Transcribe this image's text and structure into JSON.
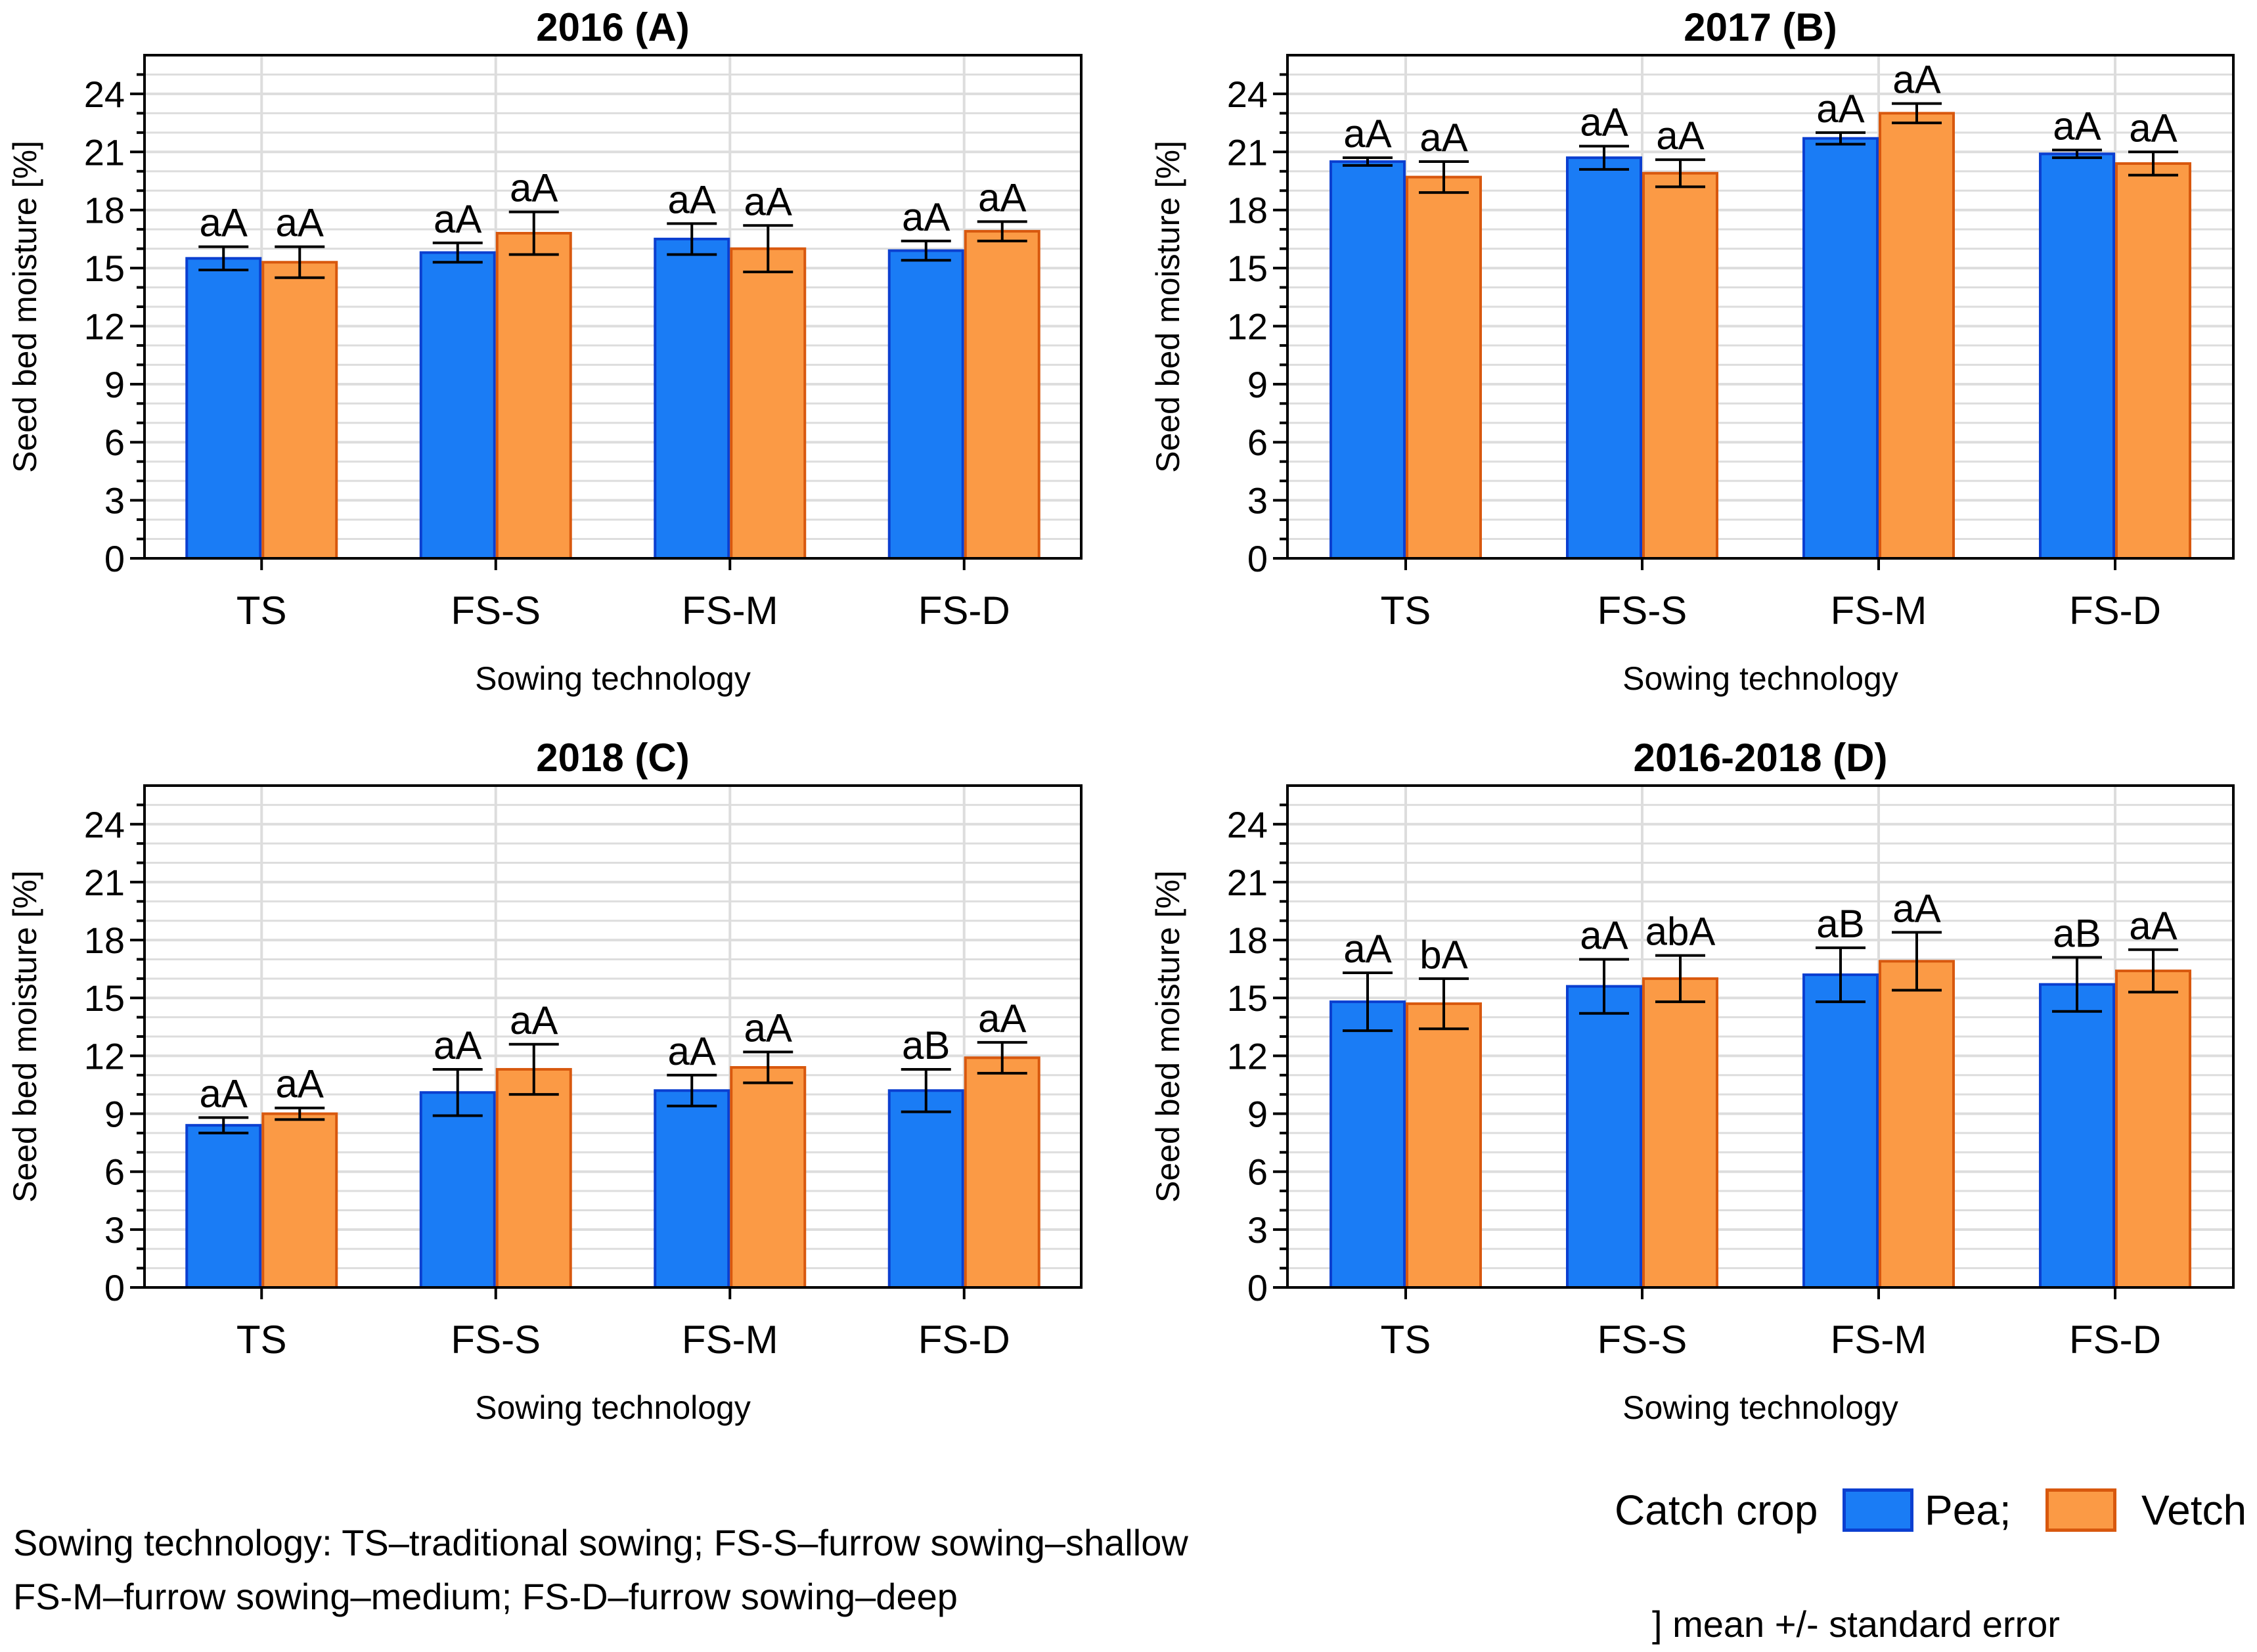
{
  "colors": {
    "pea_fill": "#1a7cf5",
    "pea_stroke": "#0b3fd0",
    "vetch_fill": "#fb9a45",
    "vetch_stroke": "#d8580e",
    "grid": "#dddddd",
    "frame": "#000000"
  },
  "chart_data": [
    {
      "type": "bar",
      "title": "2016 (A)",
      "xlabel": "Sowing technology",
      "ylabel": "Seed bed moisture [%]",
      "ylim": [
        0,
        26
      ],
      "yticks": [
        "0",
        "3",
        "6",
        "9",
        "12",
        "15",
        "18",
        "21",
        "24"
      ],
      "categories": [
        "TS",
        "FS-S",
        "FS-M",
        "FS-D"
      ],
      "series": [
        {
          "name": "Pea",
          "values": [
            15.5,
            15.8,
            16.5,
            15.9
          ],
          "errors": [
            0.6,
            0.5,
            0.8,
            0.5
          ],
          "labels": [
            "aA",
            "aA",
            "aA",
            "aA"
          ]
        },
        {
          "name": "Vetch",
          "values": [
            15.3,
            16.8,
            16.0,
            16.9
          ],
          "errors": [
            0.8,
            1.1,
            1.2,
            0.5
          ],
          "labels": [
            "aA",
            "aA",
            "aA",
            "aA"
          ]
        }
      ]
    },
    {
      "type": "bar",
      "title": "2017 (B)",
      "xlabel": "Sowing technology",
      "ylabel": "Seed bed moisture [%]",
      "ylim": [
        0,
        26
      ],
      "yticks": [
        "0",
        "3",
        "6",
        "9",
        "12",
        "15",
        "18",
        "21",
        "24"
      ],
      "categories": [
        "TS",
        "FS-S",
        "FS-M",
        "FS-D"
      ],
      "series": [
        {
          "name": "Pea",
          "values": [
            20.5,
            20.7,
            21.7,
            20.9
          ],
          "errors": [
            0.2,
            0.6,
            0.3,
            0.2
          ],
          "labels": [
            "aA",
            "aA",
            "aA",
            "aA"
          ]
        },
        {
          "name": "Vetch",
          "values": [
            19.7,
            19.9,
            23.0,
            20.4
          ],
          "errors": [
            0.8,
            0.7,
            0.5,
            0.6
          ],
          "labels": [
            "aA",
            "aA",
            "aA",
            "aA"
          ]
        }
      ]
    },
    {
      "type": "bar",
      "title": "2018 (C)",
      "xlabel": "Sowing technology",
      "ylabel": "Seed bed moisture [%]",
      "ylim": [
        0,
        26
      ],
      "yticks": [
        "0",
        "3",
        "6",
        "9",
        "12",
        "15",
        "18",
        "21",
        "24"
      ],
      "categories": [
        "TS",
        "FS-S",
        "FS-M",
        "FS-D"
      ],
      "series": [
        {
          "name": "Pea",
          "values": [
            8.4,
            10.1,
            10.2,
            10.2
          ],
          "errors": [
            0.4,
            1.2,
            0.8,
            1.1
          ],
          "labels": [
            "aA",
            "aA",
            "aA",
            "aB"
          ]
        },
        {
          "name": "Vetch",
          "values": [
            9.0,
            11.3,
            11.4,
            11.9
          ],
          "errors": [
            0.3,
            1.3,
            0.8,
            0.8
          ],
          "labels": [
            "aA",
            "aA",
            "aA",
            "aA"
          ]
        }
      ]
    },
    {
      "type": "bar",
      "title": "2016-2018 (D)",
      "xlabel": "Sowing technology",
      "ylabel": "Seed bed moisture [%]",
      "ylim": [
        0,
        26
      ],
      "yticks": [
        "0",
        "3",
        "6",
        "9",
        "12",
        "15",
        "18",
        "21",
        "24"
      ],
      "categories": [
        "TS",
        "FS-S",
        "FS-M",
        "FS-D"
      ],
      "series": [
        {
          "name": "Pea",
          "values": [
            14.8,
            15.6,
            16.2,
            15.7
          ],
          "errors": [
            1.5,
            1.4,
            1.4,
            1.4
          ],
          "labels": [
            "aA",
            "aA",
            "aB",
            "aB"
          ]
        },
        {
          "name": "Vetch",
          "values": [
            14.7,
            16.0,
            16.9,
            16.4
          ],
          "errors": [
            1.3,
            1.2,
            1.5,
            1.1
          ],
          "labels": [
            "bA",
            "abA",
            "aA",
            "aA"
          ]
        }
      ]
    }
  ],
  "legend": {
    "title": "Catch crop",
    "items": [
      {
        "label": "Pea;"
      },
      {
        "label": "Vetch"
      }
    ],
    "error_note": "] mean +/- standard error"
  },
  "footnote": {
    "line1": "Sowing technology: TS–traditional sowing; FS-S–furrow sowing–shallow",
    "line2": "FS-M–furrow sowing–medium; FS-D–furrow sowing–deep"
  }
}
